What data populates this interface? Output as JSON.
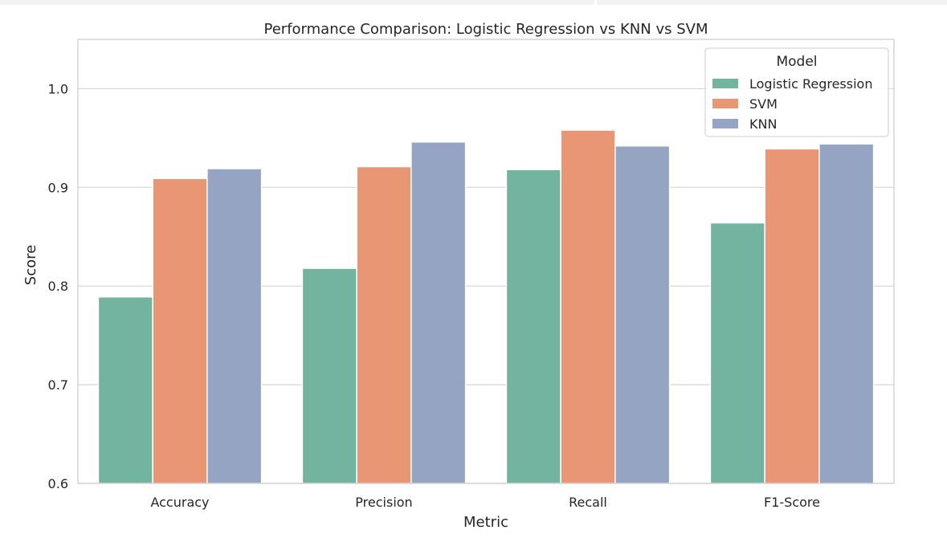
{
  "chart_data": {
    "type": "bar",
    "title": "Performance Comparison: Logistic Regression vs KNN vs SVM",
    "xlabel": "Metric",
    "ylabel": "Score",
    "categories": [
      "Accuracy",
      "Precision",
      "Recall",
      "F1-Score"
    ],
    "ylim": [
      0.6,
      1.05
    ],
    "yticks": [
      0.6,
      0.7,
      0.8,
      0.9,
      1.0
    ],
    "ytick_labels": [
      "0.6",
      "0.7",
      "0.8",
      "0.9",
      "1.0"
    ],
    "grid": true,
    "legend": {
      "title": "Model",
      "placement": "top-right"
    },
    "series": [
      {
        "name": "Logistic Regression",
        "color": "#73b4a0",
        "values": [
          0.789,
          0.818,
          0.918,
          0.864
        ]
      },
      {
        "name": "SVM",
        "color": "#e99675",
        "values": [
          0.909,
          0.921,
          0.958,
          0.939
        ]
      },
      {
        "name": "KNN",
        "color": "#94a4c2",
        "values": [
          0.919,
          0.946,
          0.942,
          0.944
        ]
      }
    ]
  }
}
